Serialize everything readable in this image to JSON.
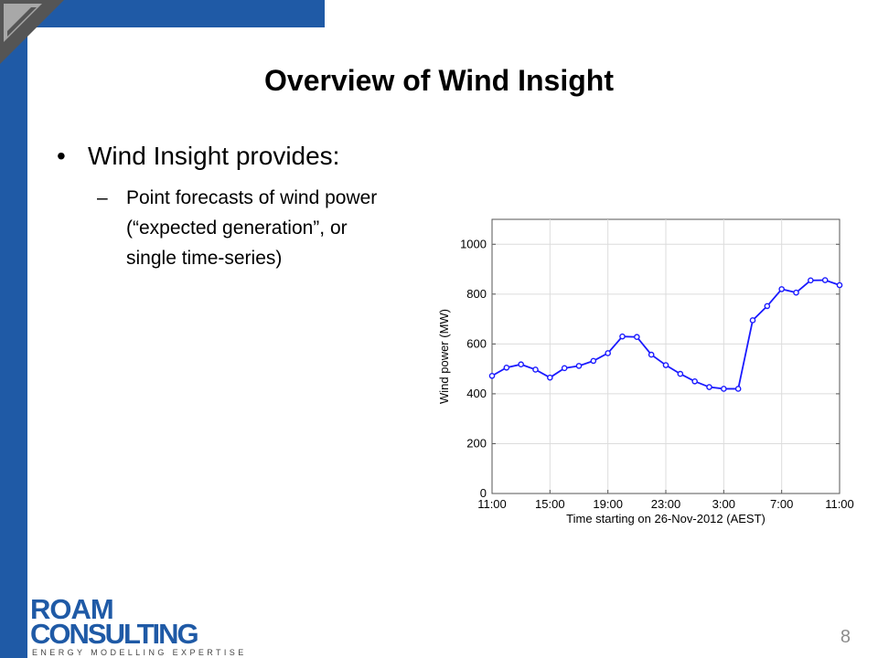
{
  "slide": {
    "title": "Overview of Wind Insight",
    "bullet": "Wind Insight provides:",
    "bullet_symbol": "•",
    "sub_bullet_symbol": "–",
    "sub_bullet_lines": [
      "Point forecasts of wind power",
      "(“expected generation”, or",
      "single time-series)"
    ],
    "page_number": "8"
  },
  "logo": {
    "line1": "ROAM",
    "line2": "CONSULTING",
    "tagline": "ENERGY MODELLING EXPERTISE"
  },
  "colors": {
    "frame": "#1f5aa6",
    "series": "#1a1aff",
    "logo": "#1f5aa6"
  },
  "chart_data": {
    "type": "line",
    "title": "",
    "xlabel": "Time starting on 26-Nov-2012 (AEST)",
    "ylabel": "Wind power (MW)",
    "x_tick_labels": [
      "11:00",
      "15:00",
      "19:00",
      "23:00",
      "3:00",
      "7:00",
      "11:00"
    ],
    "y_ticks": [
      0,
      200,
      400,
      600,
      800,
      1000
    ],
    "ylim": [
      0,
      1100
    ],
    "xlim": [
      0,
      24
    ],
    "grid": true,
    "x": [
      0,
      1,
      2,
      3,
      4,
      5,
      6,
      7,
      8,
      9,
      10,
      11,
      12,
      13,
      14,
      15,
      16,
      17,
      18,
      19,
      20,
      21,
      22,
      23,
      24
    ],
    "series": [
      {
        "values": [
          472,
          505,
          518,
          497,
          465,
          503,
          512,
          532,
          563,
          630,
          628,
          557,
          515,
          480,
          450,
          427,
          420,
          420,
          695,
          752,
          820,
          806,
          855,
          856,
          836
        ]
      }
    ]
  }
}
